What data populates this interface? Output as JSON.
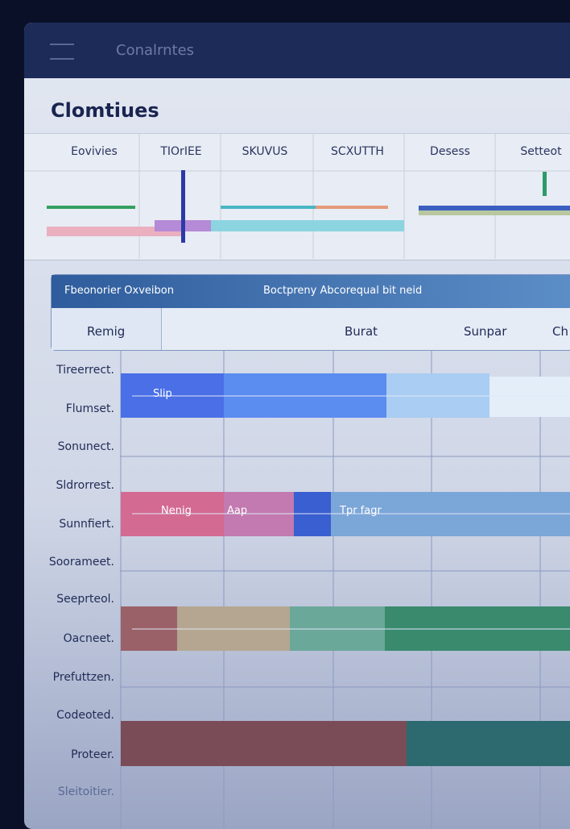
{
  "header": {
    "title": "Conalrntes"
  },
  "page": {
    "title": "Clomtiues"
  },
  "columns": [
    "Eovivies",
    "TIOrIEE",
    "SKUVUS",
    "SCXUTTH",
    "Desess",
    "Settеot"
  ],
  "card": {
    "header": [
      "Fbeonorier Oxveibon",
      "Boctpreny Abcorequal bit neid"
    ],
    "subheader": [
      "Remig",
      "Burat",
      "Sunpar",
      "Ch"
    ]
  },
  "rows": [
    "Tireerrect.",
    "Flumset.",
    "Sonunect.",
    "Sldrorrest.",
    "Sunnfiert.",
    "Sooramеet.",
    "Seeprteol.",
    "Oacneet.",
    "Prefuttzen.",
    "Codeotеd.",
    "Proteer.",
    "Sleitoitier."
  ],
  "bars": {
    "labels": [
      "Slip",
      "Nenig",
      "Aap",
      "Tpr fagr"
    ]
  }
}
